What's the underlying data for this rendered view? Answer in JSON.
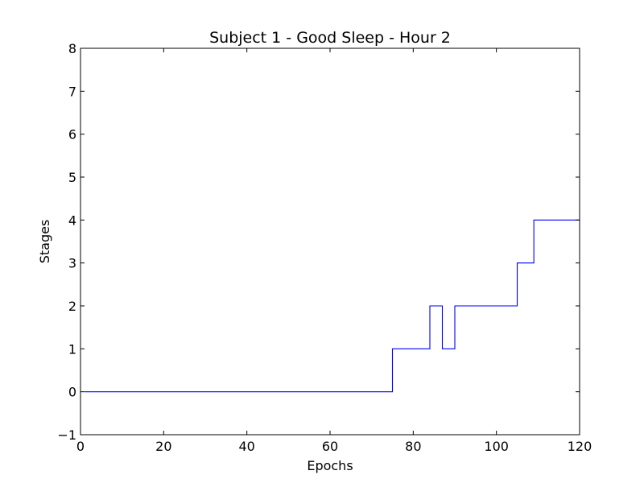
{
  "chart_data": {
    "type": "line",
    "step": "post",
    "title": "Subject 1 - Good Sleep - Hour 2",
    "xlabel": "Epochs",
    "ylabel": "Stages",
    "xlim": [
      0,
      120
    ],
    "ylim": [
      -1,
      8
    ],
    "xticks": [
      0,
      20,
      40,
      60,
      80,
      100,
      120
    ],
    "yticks": [
      -1,
      0,
      1,
      2,
      3,
      4,
      5,
      6,
      7,
      8
    ],
    "xtick_labels": [
      "0",
      "20",
      "40",
      "60",
      "80",
      "100",
      "120"
    ],
    "ytick_labels": [
      "−1",
      "0",
      "1",
      "2",
      "3",
      "4",
      "5",
      "6",
      "7",
      "8"
    ],
    "grid": false,
    "legend": false,
    "series": [
      {
        "color": "#0000ff",
        "points": [
          {
            "x": 1,
            "y": 0
          },
          {
            "x": 75,
            "y": 1
          },
          {
            "x": 84,
            "y": 2
          },
          {
            "x": 87,
            "y": 1
          },
          {
            "x": 90,
            "y": 2
          },
          {
            "x": 105,
            "y": 3
          },
          {
            "x": 109,
            "y": 4
          },
          {
            "x": 120,
            "y": 4
          }
        ]
      }
    ]
  }
}
